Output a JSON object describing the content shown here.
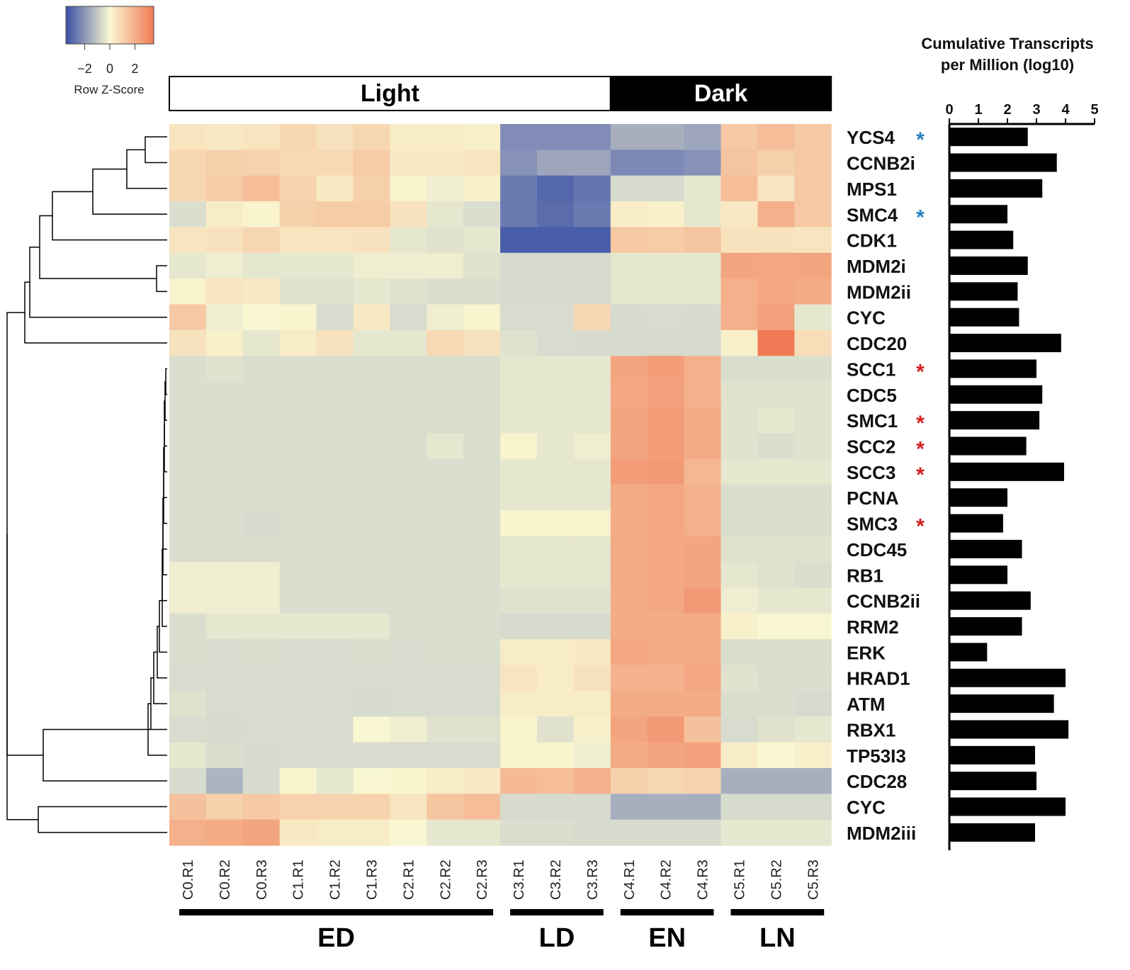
{
  "chart_data": [
    {
      "type": "heatmap",
      "legend": {
        "title": "Row Z-Score",
        "ticks": [
          "−2",
          "0",
          "2"
        ],
        "tick_values": [
          -2,
          0,
          2
        ],
        "range": [
          -3.5,
          3.5
        ],
        "colors": [
          "#3a4fa5",
          "#f9f7d2",
          "#f07a55"
        ]
      },
      "conditions": [
        {
          "label": "Light",
          "columns": [
            0,
            11
          ],
          "color": "#ffffff",
          "text_color": "#000000"
        },
        {
          "label": "Dark",
          "columns": [
            12,
            17
          ],
          "color": "#000000",
          "text_color": "#ffffff"
        }
      ],
      "phases": [
        {
          "label": "ED",
          "columns": [
            0,
            8
          ]
        },
        {
          "label": "LD",
          "columns": [
            9,
            11
          ]
        },
        {
          "label": "EN",
          "columns": [
            12,
            14
          ]
        },
        {
          "label": "LN",
          "columns": [
            15,
            17
          ]
        }
      ],
      "columns": [
        "C0.R1",
        "C0.R2",
        "C0.R3",
        "C1.R1",
        "C1.R2",
        "C1.R3",
        "C2.R1",
        "C2.R2",
        "C2.R3",
        "C3.R1",
        "C3.R2",
        "C3.R3",
        "C4.R1",
        "C4.R2",
        "C4.R3",
        "C5.R1",
        "C5.R2",
        "C5.R3"
      ],
      "rows": [
        "YCS4",
        "CCNB2i",
        "MPS1",
        "SMC4",
        "CDK1",
        "MDM2i",
        "MDM2ii",
        "CYC",
        "CDC20",
        "SCC1",
        "CDC5",
        "SMC1",
        "SCC2",
        "SCC3",
        "PCNA",
        "SMC3",
        "CDC45",
        "RB1",
        "CCNB2ii",
        "RRM2",
        "ERK",
        "HRAD1",
        "ATM",
        "RBX1",
        "TP53I3",
        "CDC28",
        "CYC",
        "MDM2iii"
      ],
      "row_markers": [
        {
          "symbol": "*",
          "color": "#2a7fc0"
        },
        null,
        null,
        {
          "symbol": "*",
          "color": "#2a7fc0"
        },
        null,
        null,
        null,
        null,
        null,
        {
          "symbol": "*",
          "color": "#d42020"
        },
        null,
        {
          "symbol": "*",
          "color": "#d42020"
        },
        {
          "symbol": "*",
          "color": "#d42020"
        },
        {
          "symbol": "*",
          "color": "#d42020"
        },
        null,
        {
          "symbol": "*",
          "color": "#d42020"
        },
        null,
        null,
        null,
        null,
        null,
        null,
        null,
        null,
        null,
        null,
        null,
        null
      ],
      "z_scores": [
        [
          0.5,
          0.4,
          0.5,
          0.9,
          0.6,
          0.9,
          0.3,
          0.3,
          0.2,
          -2.2,
          -2.2,
          -2.2,
          -1.5,
          -1.5,
          -1.7,
          1.3,
          1.6,
          1.3
        ],
        [
          0.9,
          1.1,
          1.0,
          0.8,
          0.8,
          1.2,
          0.4,
          0.4,
          0.5,
          -2.1,
          -1.7,
          -1.7,
          -2.3,
          -2.3,
          -2.1,
          1.4,
          1.1,
          1.3
        ],
        [
          0.9,
          1.2,
          1.6,
          1.0,
          0.4,
          1.1,
          0.1,
          -0.1,
          0.2,
          -2.6,
          -3.0,
          -2.7,
          -0.7,
          -0.9,
          -0.2,
          1.6,
          0.5,
          1.3
        ],
        [
          -0.4,
          0.3,
          0.1,
          1.1,
          1.2,
          1.2,
          0.6,
          -0.2,
          -0.4,
          -2.6,
          -2.9,
          -2.6,
          0.3,
          0.2,
          -0.2,
          0.4,
          2.0,
          1.3
        ],
        [
          0.5,
          0.6,
          0.9,
          0.5,
          0.5,
          0.6,
          -0.2,
          -0.3,
          -0.2,
          -3.2,
          -3.2,
          -3.2,
          1.3,
          1.2,
          1.4,
          0.6,
          0.6,
          0.5
        ],
        [
          -0.2,
          -0.1,
          -0.2,
          -0.2,
          -0.2,
          -0.1,
          -0.1,
          -0.1,
          -0.3,
          -0.6,
          -0.6,
          -0.6,
          -0.2,
          -0.2,
          -0.2,
          2.3,
          2.2,
          2.3
        ],
        [
          0.1,
          0.5,
          0.4,
          -0.3,
          -0.3,
          -0.2,
          -0.3,
          -0.4,
          -0.4,
          -0.6,
          -0.6,
          -0.6,
          -0.2,
          -0.2,
          -0.2,
          2.0,
          2.2,
          2.1
        ],
        [
          1.3,
          -0.1,
          0.0,
          0.1,
          -0.5,
          0.4,
          -0.5,
          -0.1,
          0.1,
          -0.5,
          -0.5,
          0.9,
          -1.0,
          -0.5,
          -1.0,
          2.0,
          2.4,
          -0.2
        ],
        [
          0.6,
          0.2,
          -0.2,
          0.3,
          0.6,
          -0.2,
          -0.2,
          0.8,
          0.6,
          -0.3,
          -0.5,
          -0.7,
          -0.7,
          -0.7,
          -0.9,
          0.2,
          3.5,
          0.7
        ],
        [
          -0.4,
          -0.3,
          -0.4,
          -0.4,
          -0.4,
          -0.4,
          -0.4,
          -0.4,
          -0.4,
          -0.2,
          -0.2,
          -0.2,
          2.3,
          2.5,
          2.0,
          -0.4,
          -0.4,
          -0.4
        ],
        [
          -0.4,
          -0.4,
          -0.4,
          -0.4,
          -0.4,
          -0.4,
          -0.4,
          -0.4,
          -0.4,
          -0.2,
          -0.2,
          -0.2,
          2.2,
          2.4,
          2.0,
          -0.3,
          -0.3,
          -0.3
        ],
        [
          -0.4,
          -0.4,
          -0.4,
          -0.4,
          -0.4,
          -0.4,
          -0.4,
          -0.4,
          -0.4,
          -0.2,
          -0.2,
          -0.2,
          2.3,
          2.5,
          2.1,
          -0.3,
          -0.2,
          -0.3
        ],
        [
          -0.4,
          -0.4,
          -0.4,
          -0.4,
          -0.4,
          -0.4,
          -0.4,
          -0.2,
          -0.4,
          0.1,
          -0.2,
          -0.1,
          2.3,
          2.5,
          2.1,
          -0.3,
          -0.4,
          -0.3
        ],
        [
          -0.4,
          -0.4,
          -0.4,
          -0.4,
          -0.4,
          -0.4,
          -0.4,
          -0.4,
          -0.4,
          -0.2,
          -0.2,
          -0.2,
          2.5,
          2.6,
          1.8,
          -0.2,
          -0.2,
          -0.2
        ],
        [
          -0.4,
          -0.4,
          -0.4,
          -0.4,
          -0.4,
          -0.4,
          -0.4,
          -0.4,
          -0.4,
          -0.2,
          -0.2,
          -0.2,
          2.1,
          2.2,
          2.0,
          -0.4,
          -0.4,
          -0.4
        ],
        [
          -0.4,
          -0.4,
          -0.6,
          -0.4,
          -0.4,
          -0.4,
          -0.4,
          -0.4,
          -0.4,
          0.1,
          0.1,
          0.1,
          2.1,
          2.2,
          2.0,
          -0.4,
          -0.4,
          -0.4
        ],
        [
          -0.4,
          -0.4,
          -0.4,
          -0.4,
          -0.4,
          -0.4,
          -0.4,
          -0.4,
          -0.4,
          -0.2,
          -0.2,
          -0.2,
          2.1,
          2.2,
          2.3,
          -0.3,
          -0.3,
          -0.3
        ],
        [
          -0.1,
          -0.1,
          -0.1,
          -0.4,
          -0.4,
          -0.4,
          -0.4,
          -0.4,
          -0.4,
          -0.2,
          -0.2,
          -0.2,
          2.1,
          2.2,
          2.3,
          -0.2,
          -0.3,
          -0.4
        ],
        [
          -0.1,
          -0.1,
          -0.1,
          -0.4,
          -0.4,
          -0.4,
          -0.4,
          -0.4,
          -0.4,
          -0.3,
          -0.3,
          -0.3,
          2.1,
          2.2,
          2.6,
          -0.1,
          -0.2,
          -0.2
        ],
        [
          -0.4,
          -0.2,
          -0.2,
          -0.2,
          -0.2,
          -0.2,
          -0.4,
          -0.4,
          -0.4,
          -0.9,
          -0.9,
          -0.9,
          2.1,
          2.1,
          2.1,
          0.2,
          0.0,
          0.0
        ],
        [
          -0.4,
          -0.5,
          -0.4,
          -0.5,
          -0.5,
          -0.4,
          -0.5,
          -0.4,
          -0.4,
          0.3,
          0.3,
          0.4,
          2.2,
          2.1,
          2.1,
          -0.4,
          -0.4,
          -0.4
        ],
        [
          -0.5,
          -0.5,
          -0.5,
          -0.5,
          -0.5,
          -0.5,
          -0.5,
          -0.5,
          -0.5,
          0.5,
          0.3,
          0.6,
          1.9,
          1.9,
          2.2,
          -0.3,
          -0.4,
          -0.4
        ],
        [
          -0.3,
          -0.5,
          -0.5,
          -0.5,
          -0.5,
          -0.9,
          -0.5,
          -0.5,
          -0.5,
          0.3,
          0.3,
          0.3,
          2.1,
          2.1,
          2.1,
          -0.4,
          -0.4,
          -0.6
        ],
        [
          -0.5,
          -0.8,
          -0.5,
          -0.5,
          -0.5,
          0.0,
          -0.1,
          -0.3,
          -0.3,
          0.1,
          -0.3,
          0.2,
          2.3,
          2.6,
          1.5,
          -0.5,
          -0.3,
          -0.2
        ],
        [
          -0.2,
          -0.4,
          -0.8,
          -0.5,
          -0.5,
          -0.5,
          -0.5,
          -0.5,
          -0.5,
          0.1,
          0.1,
          -0.1,
          2.1,
          2.3,
          2.4,
          0.3,
          0.0,
          0.2
        ],
        [
          -1.0,
          -1.4,
          -0.6,
          0.1,
          -0.2,
          0.0,
          0.1,
          0.3,
          0.4,
          1.7,
          1.6,
          2.0,
          1.1,
          0.9,
          1.0,
          -1.5,
          -1.5,
          -1.5
        ],
        [
          1.5,
          1.1,
          1.3,
          1.0,
          1.0,
          1.0,
          0.5,
          1.4,
          1.6,
          -0.6,
          -0.6,
          -0.6,
          -1.5,
          -1.5,
          -1.5,
          -0.6,
          -0.6,
          -0.6
        ],
        [
          2.0,
          2.1,
          2.3,
          0.4,
          0.3,
          0.3,
          0.0,
          -0.2,
          -0.2,
          -0.4,
          -0.4,
          -0.6,
          -0.6,
          -0.6,
          -0.6,
          -0.2,
          -0.2,
          -0.2
        ]
      ]
    },
    {
      "type": "bar",
      "orientation": "horizontal",
      "title": "Cumulative Transcripts per Million (log10)",
      "title_lines": [
        "Cumulative Transcripts",
        "per Million (log10)"
      ],
      "xlim": [
        0,
        5
      ],
      "xticks": [
        "0",
        "1",
        "2",
        "3",
        "4",
        "5"
      ],
      "xtick_values": [
        0,
        1,
        2,
        3,
        4,
        5
      ],
      "categories": [
        "YCS4",
        "CCNB2i",
        "MPS1",
        "SMC4",
        "CDK1",
        "MDM2i",
        "MDM2ii",
        "CYC",
        "CDC20",
        "SCC1",
        "CDC5",
        "SMC1",
        "SCC2",
        "SCC3",
        "PCNA",
        "SMC3",
        "CDC45",
        "RB1",
        "CCNB2ii",
        "RRM2",
        "ERK",
        "HRAD1",
        "ATM",
        "RBX1",
        "TP53I3",
        "CDC28",
        "CYC",
        "MDM2iii"
      ],
      "values": [
        2.7,
        3.7,
        3.2,
        2.0,
        2.2,
        2.7,
        2.35,
        2.4,
        3.85,
        3.0,
        3.2,
        3.1,
        2.65,
        3.95,
        2.0,
        1.85,
        2.5,
        2.0,
        2.8,
        2.5,
        1.3,
        4.0,
        3.6,
        4.1,
        2.95,
        3.0,
        4.0,
        2.95
      ],
      "color": "#000000"
    }
  ]
}
